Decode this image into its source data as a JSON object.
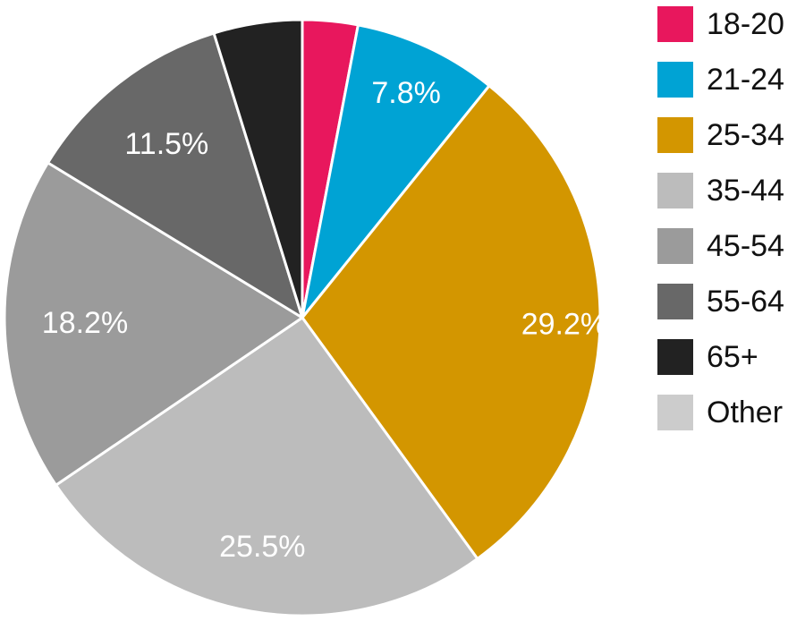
{
  "chart_data": {
    "type": "pie",
    "title": "",
    "start_angle_deg": 0,
    "direction": "clockwise",
    "slices": [
      {
        "name": "18-20",
        "value": 3.0,
        "label": "",
        "color": "#e8175d"
      },
      {
        "name": "21-24",
        "value": 7.8,
        "label": "7.8%",
        "color": "#00a3d4"
      },
      {
        "name": "25-34",
        "value": 29.2,
        "label": "29.2%",
        "color": "#d39600"
      },
      {
        "name": "35-44",
        "value": 25.5,
        "label": "25.5%",
        "color": "#bcbcbc"
      },
      {
        "name": "45-54",
        "value": 18.2,
        "label": "18.2%",
        "color": "#9b9b9b"
      },
      {
        "name": "55-64",
        "value": 11.5,
        "label": "11.5%",
        "color": "#686868"
      },
      {
        "name": "65+",
        "value": 4.8,
        "label": "",
        "color": "#222222"
      },
      {
        "name": "Other",
        "value": 0.0,
        "label": "",
        "color": "#cccccc"
      }
    ],
    "legend": {
      "placement": "right"
    }
  }
}
